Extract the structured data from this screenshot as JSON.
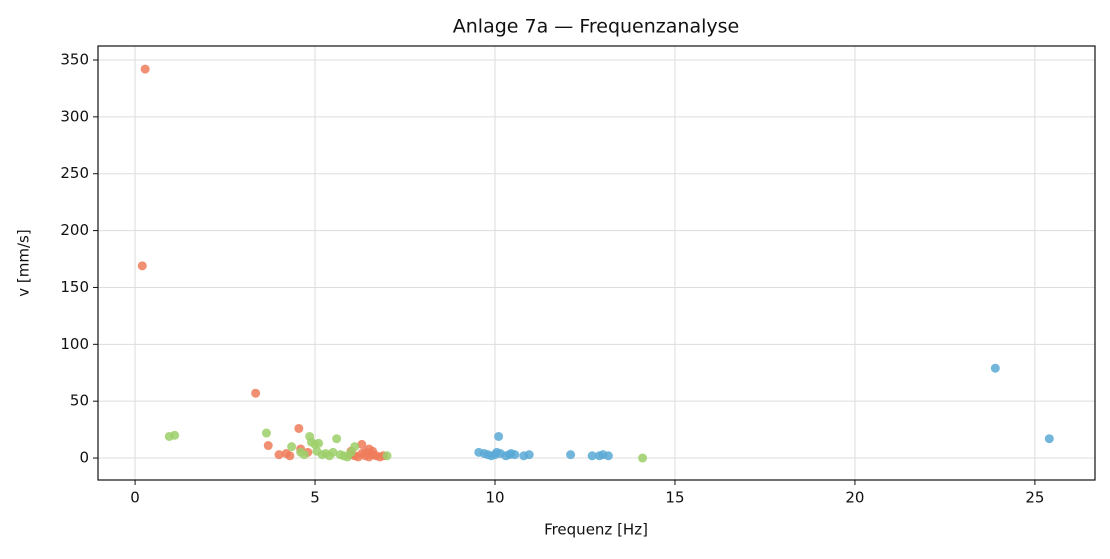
{
  "chart_data": {
    "type": "scatter",
    "title": "Anlage 7a — Frequenzanalyse",
    "x_label": "Frequenz [Hz]",
    "y_label": "v [mm/s]",
    "xlim": [
      -1.03,
      26.67
    ],
    "ylim": [
      -19.3,
      362.3
    ],
    "xticks": [
      0,
      5,
      10,
      15,
      20,
      25
    ],
    "yticks": [
      0,
      50,
      100,
      150,
      200,
      250,
      300,
      350
    ],
    "grid": true,
    "series": [
      {
        "color": "#ee7b5a",
        "x": [
          0.28,
          0.2,
          3.35,
          4.55,
          3.7,
          4.0,
          4.2,
          4.3,
          4.6,
          4.8,
          6.3,
          6.5,
          6.0,
          6.1,
          6.2,
          6.3,
          6.4,
          6.5,
          6.6,
          6.7,
          6.8,
          6.9,
          6.0,
          6.4,
          6.6
        ],
        "values": [
          342,
          169,
          57,
          26,
          11,
          3,
          4,
          2,
          8,
          5,
          12,
          8,
          3,
          2,
          1,
          4,
          2,
          1,
          3,
          2,
          1,
          2,
          6,
          5,
          6
        ]
      },
      {
        "color": "#9ccf6a",
        "x": [
          0.95,
          1.1,
          3.65,
          4.35,
          4.6,
          4.85,
          4.9,
          5.0,
          5.1,
          5.2,
          5.3,
          5.4,
          5.6,
          5.7,
          5.8,
          5.5,
          6.1,
          6.0,
          5.9,
          7.0,
          14.1,
          4.7,
          5.05
        ],
        "values": [
          19,
          20,
          22,
          10,
          5,
          19,
          14,
          12,
          13,
          3,
          4,
          2,
          17,
          3,
          2,
          5,
          10,
          5,
          1,
          2,
          0,
          3,
          6
        ]
      },
      {
        "color": "#5aa9d6",
        "x": [
          9.55,
          9.7,
          9.8,
          9.9,
          10.0,
          10.05,
          10.1,
          10.15,
          10.3,
          10.4,
          10.45,
          10.55,
          10.8,
          10.95,
          12.1,
          12.7,
          12.9,
          13.0,
          13.15,
          23.9,
          25.4
        ],
        "values": [
          5,
          4,
          3,
          2,
          3,
          5,
          19,
          4,
          2,
          3,
          4,
          3,
          2,
          3,
          3,
          2,
          2,
          3,
          2,
          79,
          17
        ]
      }
    ]
  }
}
